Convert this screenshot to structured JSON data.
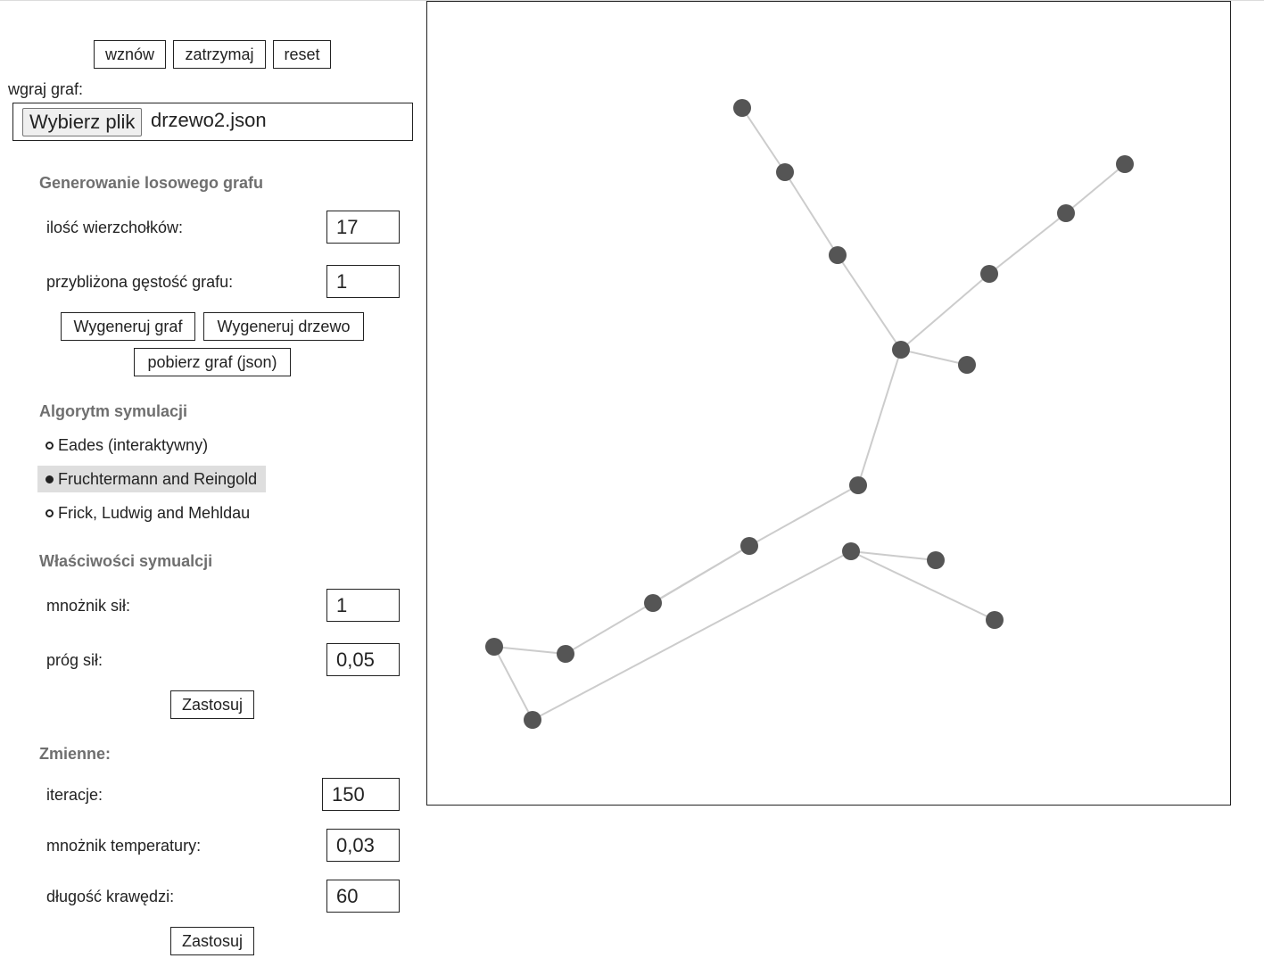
{
  "controls": {
    "resume_label": "wznów",
    "pause_label": "zatrzymaj",
    "reset_label": "reset"
  },
  "upload": {
    "label": "wgraj graf:",
    "choose_button": "Wybierz plik",
    "file_name": "drzewo2.json"
  },
  "generate": {
    "title": "Generowanie losowego grafu",
    "vertex_count_label": "ilość wierzchołków:",
    "vertex_count": "17",
    "density_label": "przybliżona gęstość grafu:",
    "density": "1",
    "generate_graph": "Wygeneruj graf",
    "generate_tree": "Wygeneruj drzewo",
    "download": "pobierz graf (json)"
  },
  "algorithm": {
    "title": "Algorytm symulacji",
    "options": [
      {
        "label": "Eades (interaktywny)",
        "selected": false
      },
      {
        "label": "Fruchtermann and Reingold",
        "selected": true
      },
      {
        "label": "Frick, Ludwig and Mehldau",
        "selected": false
      }
    ]
  },
  "properties": {
    "title": "Właściwości symualcji",
    "force_multiplier_label": "mnożnik sił:",
    "force_multiplier": "1",
    "force_threshold_label": "próg sił:",
    "force_threshold": "0,05",
    "apply": "Zastosuj"
  },
  "variables": {
    "title": "Zmienne:",
    "iterations_label": "iteracje:",
    "iterations": "150",
    "temperature_label": "mnożnik temperatury:",
    "temperature": "0,03",
    "edge_length_label": "długość krawędzi:",
    "edge_length": "60",
    "apply": "Zastosuj"
  },
  "graph": {
    "node_color": "#555555",
    "edge_color": "#cccccc",
    "node_count": 17,
    "edges": [
      [
        0,
        1
      ],
      [
        1,
        2
      ],
      [
        2,
        3
      ],
      [
        3,
        4
      ],
      [
        4,
        5
      ],
      [
        5,
        6
      ],
      [
        3,
        7
      ],
      [
        3,
        8
      ],
      [
        8,
        9
      ],
      [
        9,
        10
      ],
      [
        9,
        11
      ],
      [
        11,
        12
      ],
      [
        12,
        13
      ],
      [
        13,
        14
      ],
      [
        14,
        15
      ],
      [
        14,
        16
      ]
    ]
  }
}
